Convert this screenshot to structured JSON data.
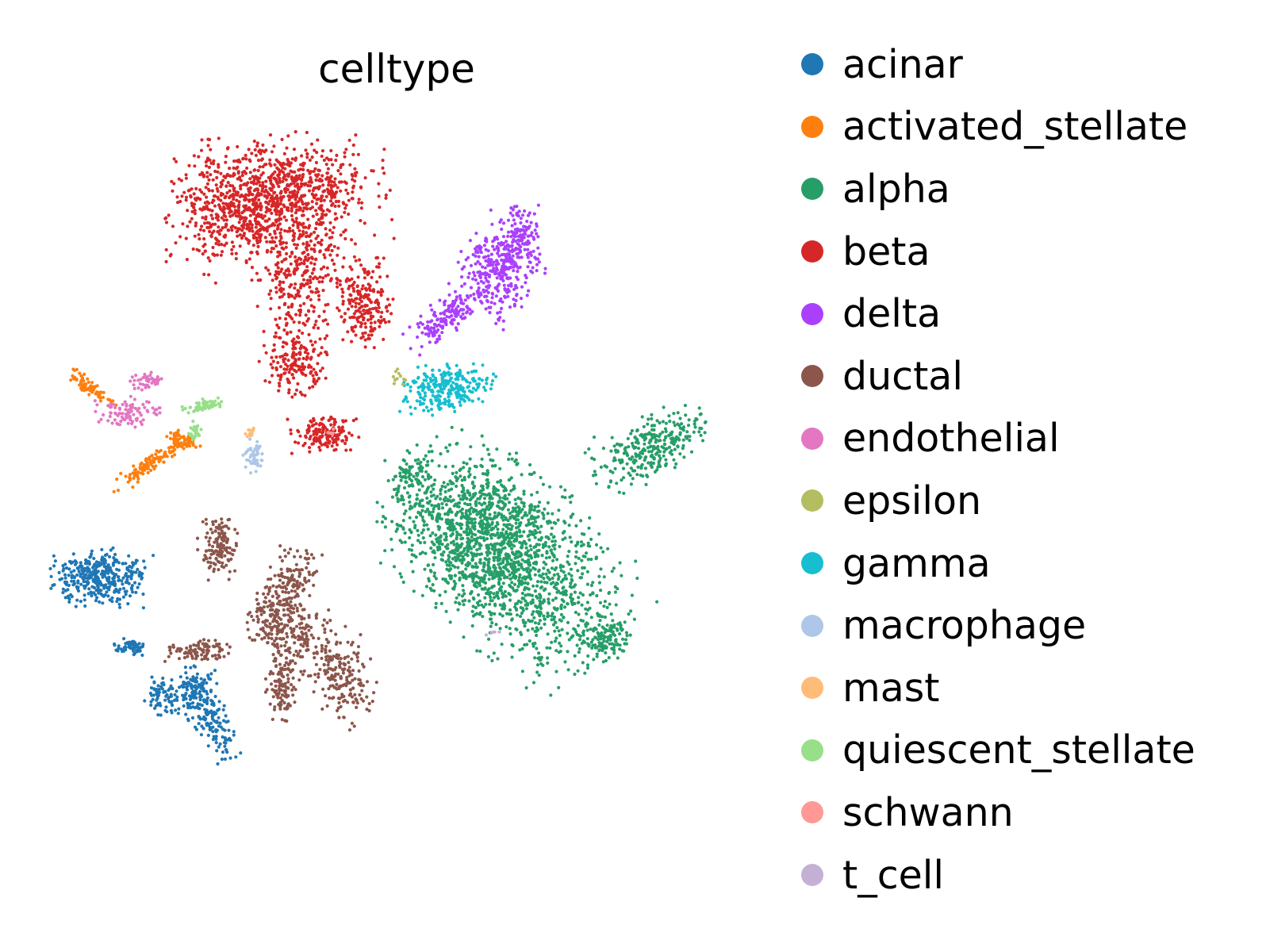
{
  "chart_data": {
    "type": "scatter",
    "title": "celltype",
    "xlabel": "",
    "ylabel": "",
    "axes_visible": false,
    "grid": false,
    "legend_position": "right",
    "series": [
      {
        "name": "acinar",
        "color": "#1f77b4"
      },
      {
        "name": "activated_stellate",
        "color": "#ff7f0e"
      },
      {
        "name": "alpha",
        "color": "#279e68"
      },
      {
        "name": "beta",
        "color": "#d62728"
      },
      {
        "name": "delta",
        "color": "#aa40fc"
      },
      {
        "name": "ductal",
        "color": "#8c564b"
      },
      {
        "name": "endothelial",
        "color": "#e377c2"
      },
      {
        "name": "epsilon",
        "color": "#b5bd61"
      },
      {
        "name": "gamma",
        "color": "#17becf"
      },
      {
        "name": "macrophage",
        "color": "#aec7e8"
      },
      {
        "name": "mast",
        "color": "#ffbb78"
      },
      {
        "name": "quiescent_stellate",
        "color": "#98df8a"
      },
      {
        "name": "schwann",
        "color": "#ff9896"
      },
      {
        "name": "t_cell",
        "color": "#c5b0d5"
      }
    ]
  }
}
